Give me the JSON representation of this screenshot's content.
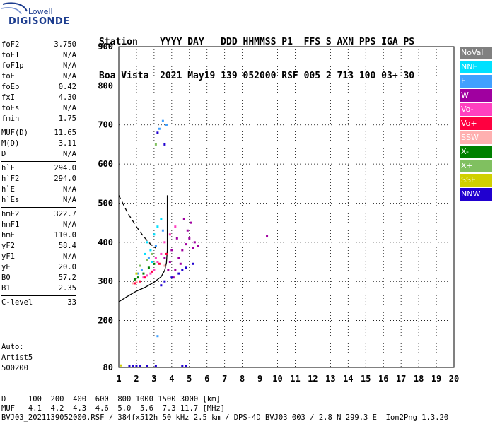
{
  "logo": {
    "brand_top": "Lowell",
    "brand_main": "DIGISONDE"
  },
  "header": {
    "line1": "Station    YYYY DAY   DDD HHMMSS P1  FFS S AXN PPS IGA PS",
    "line2": "Boa Vista  2021 May19 139 052000 RSF 005 2 713 100 03+ 30"
  },
  "params": [
    [
      {
        "k": "foF2",
        "v": "3.750"
      },
      {
        "k": "foF1",
        "v": "N/A"
      },
      {
        "k": "foF1p",
        "v": "N/A"
      },
      {
        "k": "foE",
        "v": "N/A"
      },
      {
        "k": "foEp",
        "v": "0.42"
      },
      {
        "k": "fxI",
        "v": "4.30"
      },
      {
        "k": "foEs",
        "v": "N/A"
      },
      {
        "k": "fmin",
        "v": "1.75"
      }
    ],
    [
      {
        "k": "MUF(D)",
        "v": "11.65"
      },
      {
        "k": "M(D)",
        "v": "3.11"
      },
      {
        "k": "D",
        "v": "N/A"
      }
    ],
    [
      {
        "k": "h`F",
        "v": "294.0"
      },
      {
        "k": "h`F2",
        "v": "294.0"
      },
      {
        "k": "h`E",
        "v": "N/A"
      },
      {
        "k": "h`Es",
        "v": "N/A"
      }
    ],
    [
      {
        "k": "hmF2",
        "v": "322.7"
      },
      {
        "k": "hmF1",
        "v": "N/A"
      },
      {
        "k": "hmE",
        "v": "110.0"
      },
      {
        "k": "yF2",
        "v": "58.4"
      },
      {
        "k": "yF1",
        "v": "N/A"
      },
      {
        "k": "yE",
        "v": "20.0"
      },
      {
        "k": "B0",
        "v": "57.2"
      },
      {
        "k": "B1",
        "v": "2.35"
      }
    ],
    [
      {
        "k": "C-level",
        "v": "33"
      }
    ]
  ],
  "auto": {
    "line1": "Auto:",
    "line2": "Artist5",
    "line3": "500200"
  },
  "legend": [
    {
      "label": "NoVal",
      "color": "#808080"
    },
    {
      "label": "NNE",
      "color": "#00e0ff"
    },
    {
      "label": "E",
      "color": "#40a0ff"
    },
    {
      "label": "W",
      "color": "#a000a0"
    },
    {
      "label": "Vo-",
      "color": "#ff40c0"
    },
    {
      "label": "Vo+",
      "color": "#ff0040"
    },
    {
      "label": "SSW",
      "color": "#ffb0b0"
    },
    {
      "label": "X-",
      "color": "#008000"
    },
    {
      "label": "X+",
      "color": "#80c060"
    },
    {
      "label": "SSE",
      "color": "#d0d000"
    },
    {
      "label": "NNW",
      "color": "#2000d0"
    }
  ],
  "footer": {
    "line1": "D     100  200  400  600  800 1000 1500 3000 [km]",
    "line2": "MUF   4.1  4.2  4.3  4.6  5.0  5.6  7.3 11.7 [MHz]",
    "line3": "BVJ03_2021139052000.RSF / 384fx512h 50 kHz 2.5 km / DPS-4D BVJ03 003 / 2.8 N 299.3 E  Ion2Png 1.3.20"
  },
  "chart_data": {
    "type": "scatter",
    "title": "",
    "xlabel": "",
    "ylabel": "",
    "xlim": [
      1,
      20
    ],
    "ylim": [
      80,
      900
    ],
    "x_ticks": [
      1,
      2,
      3,
      4,
      5,
      6,
      7,
      8,
      9,
      10,
      11,
      12,
      13,
      14,
      15,
      16,
      17,
      18,
      19,
      20
    ],
    "y_ticks": [
      80,
      200,
      300,
      400,
      500,
      600,
      700,
      800,
      900
    ],
    "grid": true,
    "description_of_marks": "ionogram echo traces, color by polarization/direction",
    "series": [
      {
        "name": "W",
        "color": "#a000a0",
        "points": [
          [
            4.6,
            380
          ],
          [
            4.8,
            395
          ],
          [
            5.0,
            410
          ],
          [
            5.2,
            385
          ],
          [
            4.4,
            360
          ],
          [
            4.9,
            430
          ],
          [
            5.1,
            450
          ],
          [
            4.3,
            410
          ],
          [
            4.7,
            460
          ],
          [
            5.3,
            400
          ],
          [
            5.5,
            390
          ],
          [
            4.5,
            345
          ],
          [
            4.2,
            330
          ],
          [
            3.9,
            350
          ],
          [
            4.0,
            380
          ],
          [
            3.6,
            360
          ],
          [
            3.8,
            330
          ],
          [
            4.1,
            310
          ],
          [
            9.4,
            415
          ]
        ]
      },
      {
        "name": "Vo-",
        "color": "#ff40c0",
        "points": [
          [
            3.0,
            330
          ],
          [
            3.2,
            350
          ],
          [
            3.4,
            370
          ],
          [
            2.8,
            320
          ],
          [
            3.6,
            400
          ],
          [
            3.1,
            360
          ],
          [
            2.6,
            315
          ],
          [
            3.9,
            420
          ],
          [
            4.2,
            440
          ],
          [
            2.4,
            310
          ]
        ]
      },
      {
        "name": "Vo+",
        "color": "#ff0040",
        "points": [
          [
            2.2,
            300
          ],
          [
            2.5,
            310
          ],
          [
            2.9,
            325
          ],
          [
            3.3,
            345
          ],
          [
            3.7,
            370
          ],
          [
            2.0,
            298
          ],
          [
            1.9,
            295
          ]
        ]
      },
      {
        "name": "NNE",
        "color": "#00e0ff",
        "points": [
          [
            2.8,
            380
          ],
          [
            3.0,
            420
          ],
          [
            2.6,
            400
          ],
          [
            3.2,
            440
          ],
          [
            2.5,
            370
          ],
          [
            3.4,
            460
          ],
          [
            2.9,
            350
          ]
        ]
      },
      {
        "name": "E",
        "color": "#40a0ff",
        "points": [
          [
            2.3,
            330
          ],
          [
            2.7,
            360
          ],
          [
            3.1,
            390
          ],
          [
            2.1,
            320
          ],
          [
            3.5,
            430
          ],
          [
            3.3,
            690
          ],
          [
            3.5,
            710
          ],
          [
            3.7,
            700
          ],
          [
            3.2,
            160
          ]
        ]
      },
      {
        "name": "X-",
        "color": "#008000",
        "points": [
          [
            2.1,
            310
          ],
          [
            2.4,
            320
          ],
          [
            2.7,
            335
          ],
          [
            3.0,
            345
          ],
          [
            1.9,
            305
          ]
        ]
      },
      {
        "name": "X+",
        "color": "#80c060",
        "points": [
          [
            2.2,
            340
          ],
          [
            2.6,
            355
          ],
          [
            2.9,
            370
          ],
          [
            3.1,
            650
          ]
        ]
      },
      {
        "name": "SSW",
        "color": "#ffb0b0",
        "points": [
          [
            1.8,
            295
          ],
          [
            2.0,
            300
          ],
          [
            3.6,
            340
          ]
        ]
      },
      {
        "name": "SSE",
        "color": "#d0d000",
        "points": [
          [
            1.1,
            85
          ],
          [
            2.0,
            320
          ]
        ]
      },
      {
        "name": "NNW",
        "color": "#2000d0",
        "points": [
          [
            3.6,
            300
          ],
          [
            4.0,
            310
          ],
          [
            4.4,
            320
          ],
          [
            4.8,
            335
          ],
          [
            5.2,
            345
          ],
          [
            3.4,
            290
          ],
          [
            4.6,
            330
          ],
          [
            3.2,
            680
          ],
          [
            3.6,
            650
          ],
          [
            1.6,
            84
          ],
          [
            1.8,
            83
          ],
          [
            2.0,
            84
          ],
          [
            2.2,
            83
          ],
          [
            2.6,
            84
          ],
          [
            3.1,
            83
          ],
          [
            4.6,
            83
          ],
          [
            4.8,
            84
          ]
        ]
      }
    ],
    "curves": [
      {
        "name": "solid",
        "style": "solid",
        "points": [
          [
            1.0,
            248
          ],
          [
            1.5,
            262
          ],
          [
            2.0,
            275
          ],
          [
            2.5,
            285
          ],
          [
            3.0,
            298
          ],
          [
            3.4,
            312
          ],
          [
            3.6,
            328
          ],
          [
            3.7,
            348
          ],
          [
            3.75,
            380
          ],
          [
            3.75,
            520
          ]
        ]
      },
      {
        "name": "dashed",
        "style": "dashed",
        "points": [
          [
            1.0,
            520
          ],
          [
            1.5,
            475
          ],
          [
            2.0,
            440
          ],
          [
            2.4,
            415
          ],
          [
            2.8,
            395
          ],
          [
            3.1,
            385
          ]
        ]
      }
    ]
  }
}
